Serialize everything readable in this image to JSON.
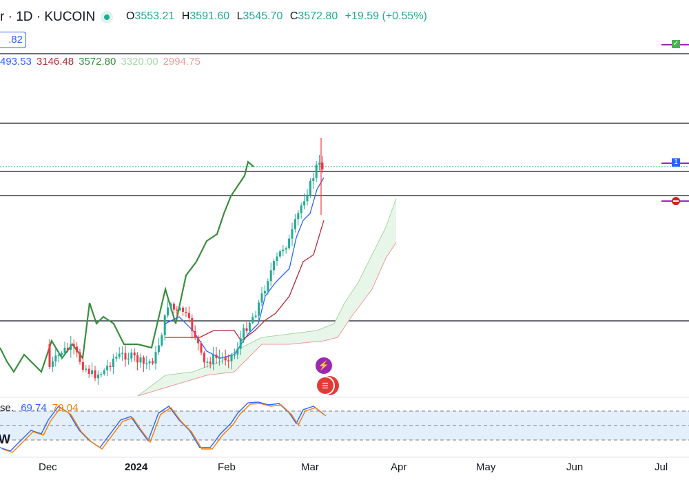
{
  "header": {
    "title": "r · 1D · KUCOIN",
    "ohlc": [
      {
        "k": "O",
        "v": "3553.21"
      },
      {
        "k": "H",
        "v": "3591.60"
      },
      {
        "k": "L",
        "v": "3545.70"
      },
      {
        "k": "C",
        "v": "3572.80"
      },
      {
        "k": "",
        "v": "+19.59 (+0.55%)"
      }
    ],
    "price_box": ".82"
  },
  "ichimoku": {
    "values": [
      {
        "text": "493.53",
        "color": "#2962ff"
      },
      {
        "text": "3146.48",
        "color": "#b22833"
      },
      {
        "text": "3572.80",
        "color": "#388e3c"
      },
      {
        "text": "3320.00",
        "color": "#a5d6a7"
      },
      {
        "text": "2994.75",
        "color": "#ef9a9a"
      }
    ]
  },
  "rsi": {
    "label": "se.",
    "value1": "69.74",
    "value2": "79.04",
    "w_label": "W",
    "color1": "#2962ff",
    "color2": "#f57c00"
  },
  "time_axis": [
    {
      "label": "Dec",
      "bold": false
    },
    {
      "label": "2024",
      "bold": true
    },
    {
      "label": "Feb",
      "bold": false
    },
    {
      "label": "Mar",
      "bold": false
    },
    {
      "label": "Apr",
      "bold": false
    },
    {
      "label": "May",
      "bold": false
    },
    {
      "label": "Jun",
      "bold": false
    },
    {
      "label": "Jul",
      "bold": false
    }
  ],
  "right_markers": [
    "check-alert-icon",
    "label-1-icon",
    "minus-alert-icon"
  ],
  "right_marker_text": "1",
  "events": [
    "lightning-event-icon",
    "us-flag-event-icon"
  ],
  "colors": {
    "up": "#22ab94",
    "down": "#f23645",
    "tenkan": "#2962ff",
    "kijun": "#b22833",
    "chikou": "#388e3c"
  }
}
